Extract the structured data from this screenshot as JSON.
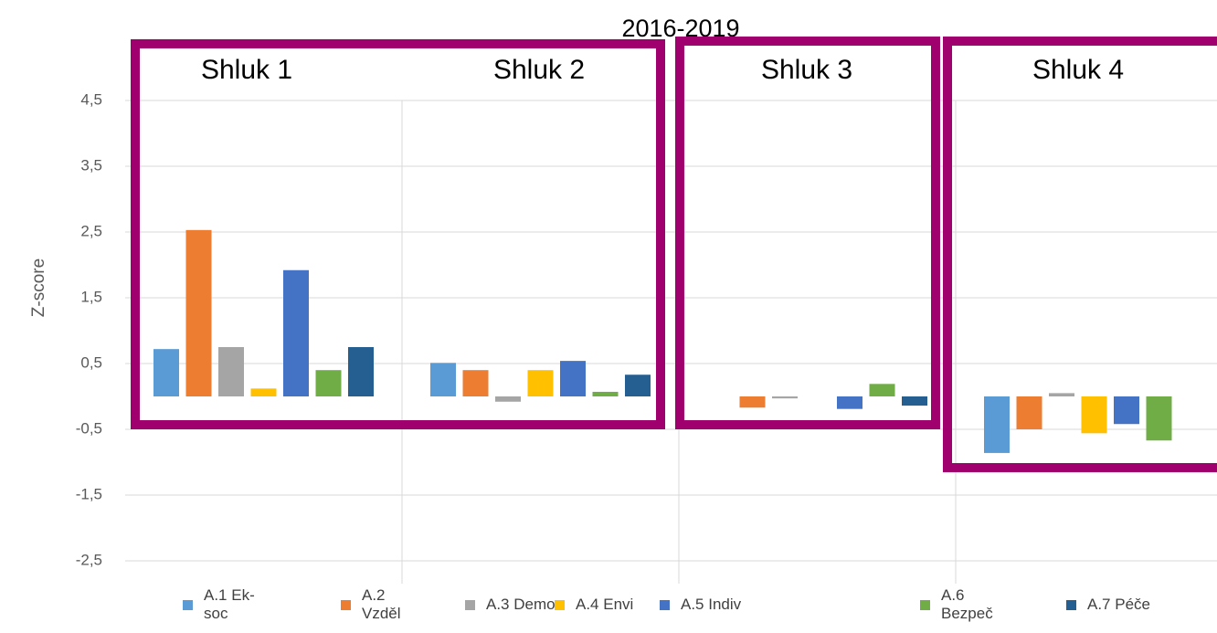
{
  "chart_data": {
    "type": "bar",
    "title": "2016-2019",
    "y_label": "Z-score",
    "annotations": [
      "Shluk 1",
      "Shluk 2",
      "Shluk 3",
      "Shluk 4"
    ],
    "categories": [
      null,
      null,
      null,
      null
    ],
    "series": [
      {
        "name": "A.1 Ek-soc",
        "color": "#5b9bd5",
        "values": [
          0.72,
          0.51,
          0,
          -0.86
        ]
      },
      {
        "name": "A.2 Vzděl",
        "color": "#ed7d31",
        "values": [
          2.53,
          0.4,
          -0.17,
          -0.5
        ]
      },
      {
        "name": "A.3 Demo",
        "color": "#a5a5a5",
        "values": [
          0.75,
          -0.08,
          -0.03,
          0.05
        ]
      },
      {
        "name": "A.4 Envi",
        "color": "#ffc000",
        "values": [
          0.12,
          0.4,
          0,
          -0.56
        ]
      },
      {
        "name": "A.5 Indiv",
        "color": "#4472c4",
        "values": [
          1.92,
          0.54,
          -0.19,
          -0.42
        ]
      },
      {
        "name": "A.6 Bezpeč",
        "color": "#70ad47",
        "values": [
          0.4,
          0.07,
          0.19,
          -0.67
        ]
      },
      {
        "name": "A.7 Péče",
        "color": "#255e91",
        "values": [
          0.75,
          0.33,
          -0.14,
          0
        ]
      }
    ],
    "ylim": [
      -2.5,
      4.5
    ],
    "yticks": [
      {
        "value": -2.5,
        "label": "-2,5"
      },
      {
        "value": -1.5,
        "label": "-1,5"
      },
      {
        "value": -0.5,
        "label": "-0,5"
      },
      {
        "value": 0.5,
        "label": "0,5"
      },
      {
        "value": 1.5,
        "label": "1,5"
      },
      {
        "value": 2.5,
        "label": "2,5"
      },
      {
        "value": 3.5,
        "label": "3,5"
      },
      {
        "value": 4.5,
        "label": "4,5"
      }
    ],
    "grid": true
  }
}
